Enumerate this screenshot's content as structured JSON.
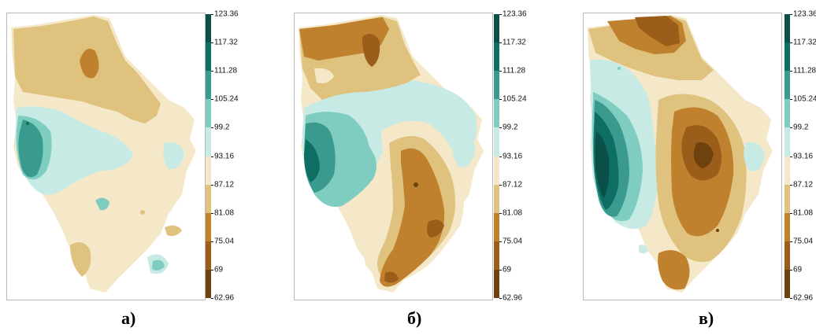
{
  "colorbar": {
    "ticks": [
      "123.36",
      "117.32",
      "111.28",
      "105.24",
      "99.2",
      "93.16",
      "87.12",
      "81.08",
      "75.04",
      "69",
      "62.96"
    ],
    "colors": [
      "#0a4f48",
      "#0e6e64",
      "#3a9a8e",
      "#7fcdc1",
      "#c7eae5",
      "#f5e8c9",
      "#dfc27d",
      "#bf812d",
      "#9a5d1a",
      "#6e420f"
    ]
  },
  "panels": [
    {
      "caption": "а)"
    },
    {
      "caption": "б)"
    },
    {
      "caption": "в)"
    }
  ]
}
